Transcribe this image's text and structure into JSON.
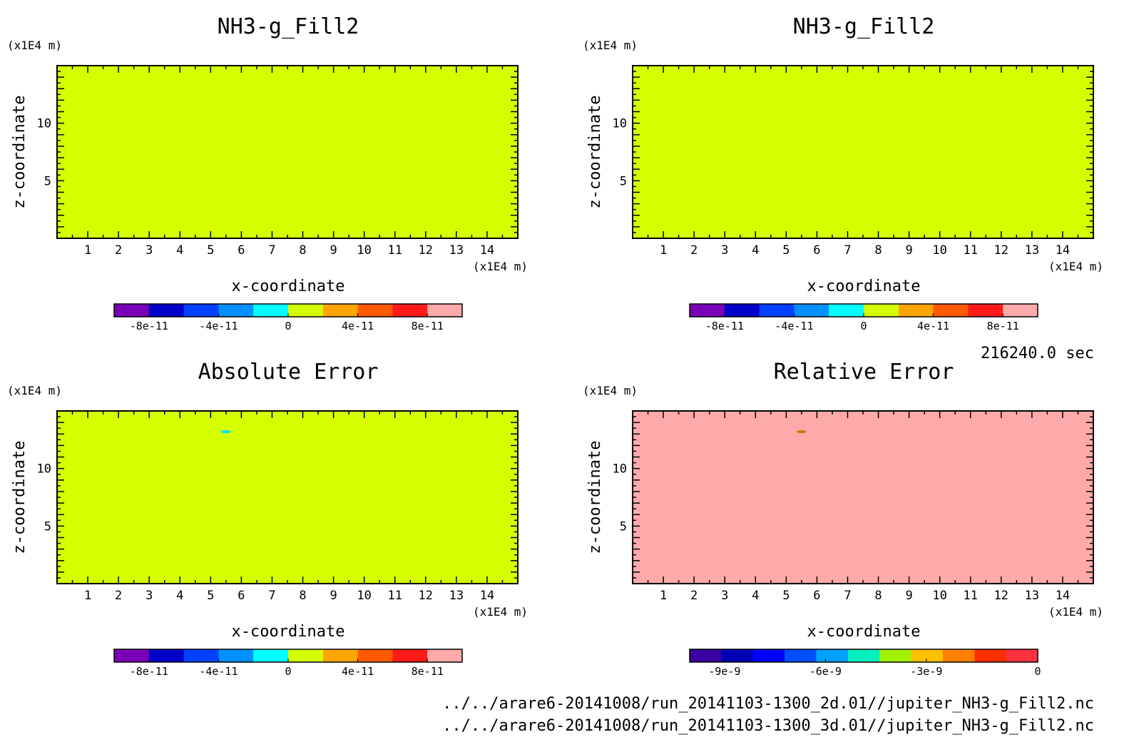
{
  "figure": {
    "time_label": "216240.0 sec",
    "footer_lines": [
      "../../arare6-20141008/run_20141103-1300_2d.01//jupiter_NH3-g_Fill2.nc",
      "../../arare6-20141008/run_20141103-1300_3d.01//jupiter_NH3-g_Fill2.nc"
    ]
  },
  "chart_data": [
    {
      "type": "heatmap",
      "title": "NH3-g_Fill2",
      "xlabel": "x-coordinate",
      "ylabel": "z-coordinate",
      "x_unit": "(x1E4 m)",
      "y_unit": "(x1E4 m)",
      "xlim": [
        0,
        15
      ],
      "ylim": [
        0,
        15
      ],
      "xticks": [
        "1",
        "2",
        "3",
        "4",
        "5",
        "6",
        "7",
        "8",
        "9",
        "10",
        "11",
        "12",
        "13",
        "14"
      ],
      "yticks": [
        "5",
        "10"
      ],
      "fill_color": "#d4ff00",
      "features": [],
      "colorbar": {
        "colors": [
          "#7a00b8",
          "#0000c8",
          "#0040ff",
          "#0090ff",
          "#00ffff",
          "#d4ff00",
          "#ffa500",
          "#ff5a00",
          "#ff1a1a",
          "#ffaaaa"
        ],
        "tick_labels": [
          "-8e-11",
          "-4e-11",
          "0",
          "4e-11",
          "8e-11"
        ]
      }
    },
    {
      "type": "heatmap",
      "title": "NH3-g_Fill2",
      "xlabel": "x-coordinate",
      "ylabel": "z-coordinate",
      "x_unit": "(x1E4 m)",
      "y_unit": "(x1E4 m)",
      "xlim": [
        0,
        15
      ],
      "ylim": [
        0,
        15
      ],
      "xticks": [
        "1",
        "2",
        "3",
        "4",
        "5",
        "6",
        "7",
        "8",
        "9",
        "10",
        "11",
        "12",
        "13",
        "14"
      ],
      "yticks": [
        "5",
        "10"
      ],
      "fill_color": "#d4ff00",
      "features": [],
      "colorbar": {
        "colors": [
          "#7a00b8",
          "#0000c8",
          "#0040ff",
          "#0090ff",
          "#00ffff",
          "#d4ff00",
          "#ffa500",
          "#ff5a00",
          "#ff1a1a",
          "#ffaaaa"
        ],
        "tick_labels": [
          "-8e-11",
          "-4e-11",
          "0",
          "4e-11",
          "8e-11"
        ]
      }
    },
    {
      "type": "heatmap",
      "title": "Absolute Error",
      "xlabel": "x-coordinate",
      "ylabel": "z-coordinate",
      "x_unit": "(x1E4 m)",
      "y_unit": "(x1E4 m)",
      "xlim": [
        0,
        15
      ],
      "ylim": [
        0,
        15
      ],
      "xticks": [
        "1",
        "2",
        "3",
        "4",
        "5",
        "6",
        "7",
        "8",
        "9",
        "10",
        "11",
        "12",
        "13",
        "14"
      ],
      "yticks": [
        "5",
        "10"
      ],
      "fill_color": "#d4ff00",
      "features": [
        {
          "x": 5.5,
          "z": 13.2,
          "color": "#00e5ff"
        }
      ],
      "colorbar": {
        "colors": [
          "#7a00b8",
          "#0000c8",
          "#0040ff",
          "#0090ff",
          "#00ffff",
          "#d4ff00",
          "#ffa500",
          "#ff5a00",
          "#ff1a1a",
          "#ffaaaa"
        ],
        "tick_labels": [
          "-8e-11",
          "-4e-11",
          "0",
          "4e-11",
          "8e-11"
        ]
      }
    },
    {
      "type": "heatmap",
      "title": "Relative Error",
      "xlabel": "x-coordinate",
      "ylabel": "z-coordinate",
      "x_unit": "(x1E4 m)",
      "y_unit": "(x1E4 m)",
      "xlim": [
        0,
        15
      ],
      "ylim": [
        0,
        15
      ],
      "xticks": [
        "1",
        "2",
        "3",
        "4",
        "5",
        "6",
        "7",
        "8",
        "9",
        "10",
        "11",
        "12",
        "13",
        "14"
      ],
      "yticks": [
        "5",
        "10"
      ],
      "fill_color": "#ffaaaa",
      "features": [
        {
          "x": 5.5,
          "z": 13.2,
          "color": "#b8860b"
        }
      ],
      "colorbar": {
        "colors": [
          "#3a00a0",
          "#0000b8",
          "#0000ff",
          "#0050ff",
          "#00a0ff",
          "#00f0c0",
          "#a0f000",
          "#ffc000",
          "#ff8000",
          "#ff3000",
          "#ff3040"
        ],
        "tick_labels": [
          "-9e-9",
          "-6e-9",
          "-3e-9",
          "0"
        ],
        "tick_positions": [
          0.1,
          0.39,
          0.68,
          1.0
        ]
      }
    }
  ]
}
